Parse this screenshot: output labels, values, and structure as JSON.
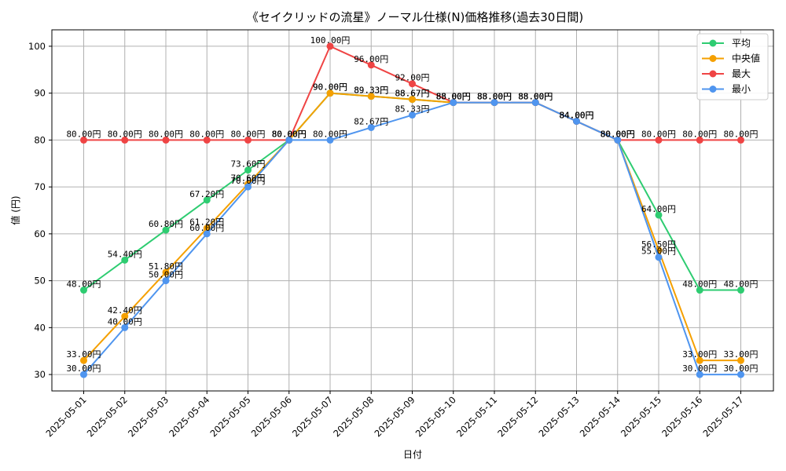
{
  "chart_data": {
    "type": "line",
    "title": "《セイクリッドの流星》ノーマル仕様(N)価格推移(過去30日間)",
    "xlabel": "日付",
    "ylabel": "値 (円)",
    "ylim": [
      26.5,
      103.5
    ],
    "yticks": [
      30,
      40,
      50,
      60,
      70,
      80,
      90,
      100
    ],
    "grid": true,
    "legend_position": "top-right",
    "value_suffix": "円",
    "categories": [
      "2025-05-01",
      "2025-05-02",
      "2025-05-03",
      "2025-05-04",
      "2025-05-05",
      "2025-05-06",
      "2025-05-07",
      "2025-05-08",
      "2025-05-09",
      "2025-05-10",
      "2025-05-11",
      "2025-05-12",
      "2025-05-13",
      "2025-05-14",
      "2025-05-15",
      "2025-05-16",
      "2025-05-17"
    ],
    "series": [
      {
        "name": "平均",
        "color": "#2ecc71",
        "values": [
          48.0,
          54.4,
          60.8,
          67.2,
          73.6,
          80.0,
          90.0,
          89.33,
          88.67,
          88.0,
          88.0,
          88.0,
          84.0,
          80.0,
          64.0,
          48.0,
          48.0
        ]
      },
      {
        "name": "中央値",
        "color": "#f5a000",
        "values": [
          33.0,
          42.4,
          51.8,
          61.2,
          70.6,
          80.0,
          90.0,
          89.33,
          88.67,
          88.0,
          88.0,
          88.0,
          84.0,
          80.0,
          56.5,
          33.0,
          33.0
        ]
      },
      {
        "name": "最大",
        "color": "#ef4444",
        "values": [
          80.0,
          80.0,
          80.0,
          80.0,
          80.0,
          80.0,
          100.0,
          96.0,
          92.0,
          88.0,
          88.0,
          88.0,
          84.0,
          80.0,
          80.0,
          80.0,
          80.0
        ]
      },
      {
        "name": "最小",
        "color": "#4f95ef",
        "values": [
          30.0,
          40.0,
          50.0,
          60.0,
          70.0,
          80.0,
          80.0,
          82.67,
          85.33,
          88.0,
          88.0,
          88.0,
          84.0,
          80.0,
          55.0,
          30.0,
          30.0
        ]
      }
    ]
  }
}
